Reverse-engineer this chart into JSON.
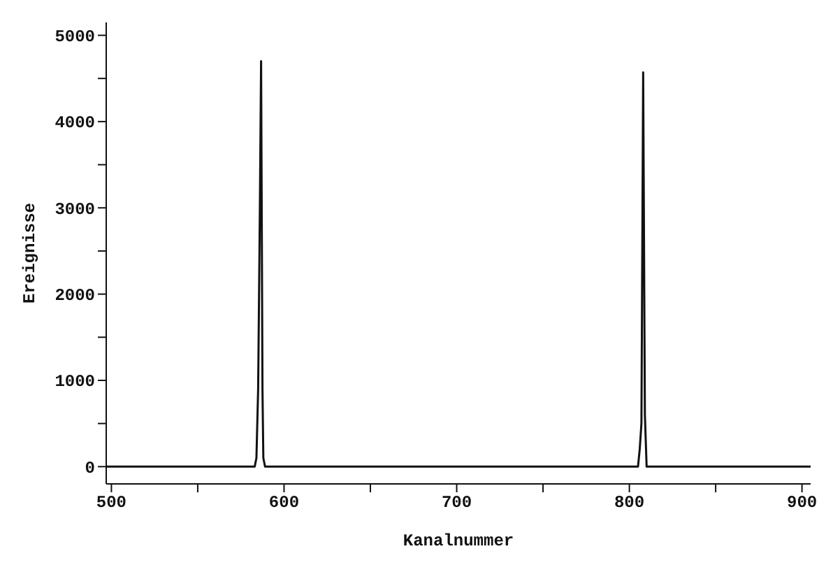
{
  "chart_data": {
    "type": "line",
    "xlabel": "Kanalnummer",
    "ylabel": "Ereignisse",
    "x": [
      497,
      520,
      560,
      583,
      584,
      585,
      586,
      586.7,
      587.5,
      588,
      589,
      620,
      700,
      780,
      805,
      806,
      807,
      808,
      809,
      810,
      850,
      905
    ],
    "series": [
      {
        "color": "#111111",
        "values": [
          0,
          0,
          0,
          0,
          100,
          900,
          3000,
          4700,
          900,
          100,
          0,
          0,
          0,
          0,
          0,
          200,
          500,
          4570,
          600,
          0,
          0,
          0
        ]
      }
    ],
    "xlim": [
      497,
      905
    ],
    "ylim": [
      -200,
      5150
    ],
    "xticks": [
      500,
      {
        "value": 550,
        "label": null
      },
      600,
      {
        "value": 650,
        "label": null
      },
      700,
      {
        "value": 750,
        "label": null
      },
      800,
      {
        "value": 850,
        "label": null
      },
      900
    ],
    "yticks": [
      0,
      {
        "value": 500,
        "label": null
      },
      1000,
      {
        "value": 1500,
        "label": null
      },
      2000,
      {
        "value": 2500,
        "label": null
      },
      3000,
      {
        "value": 3500,
        "label": null
      },
      4000,
      {
        "value": 4500,
        "label": null
      },
      5000
    ],
    "grid": false,
    "legend": false,
    "marker": "none",
    "line_style": "solid"
  }
}
